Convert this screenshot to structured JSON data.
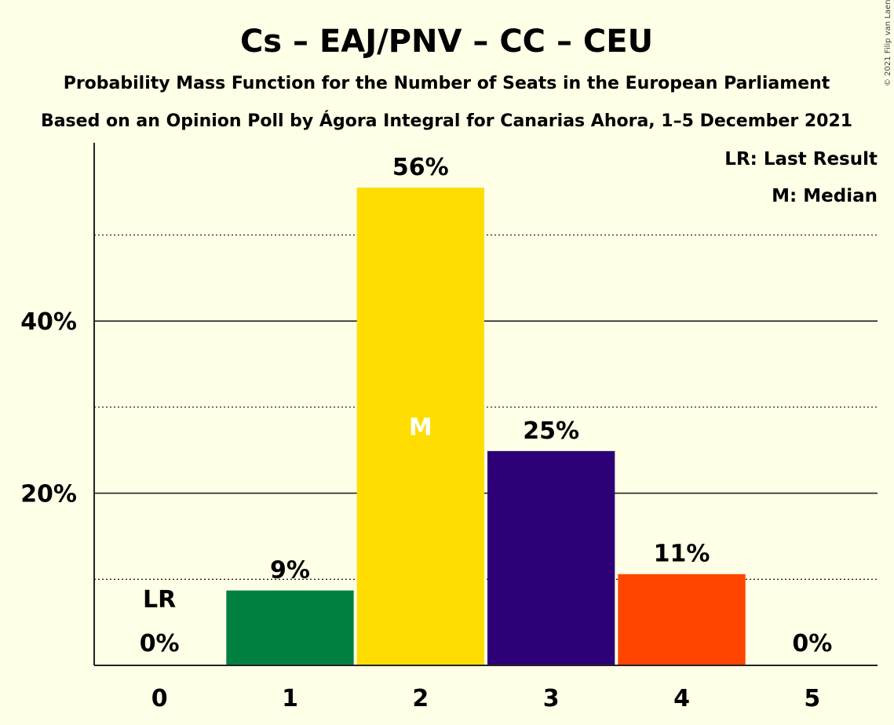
{
  "chart_data": {
    "type": "bar",
    "title": "Cs – EAJ/PNV – CC – CEU",
    "subtitle": "Probability Mass Function for the Number of Seats in the European Parliament",
    "subtitle2": "Based on an Opinion Poll by Ágora Integral for Canarias Ahora, 1–5 December 2021",
    "copyright": "© 2021 Filip van Laenen",
    "legend": [
      "LR: Last Result",
      "M: Median"
    ],
    "legend_position": "top-right",
    "categories": [
      "0",
      "1",
      "2",
      "3",
      "4",
      "5"
    ],
    "values": [
      0,
      8.7,
      55.5,
      24.9,
      10.6,
      0
    ],
    "value_labels": [
      "0%",
      "9%",
      "56%",
      "25%",
      "11%",
      "0%"
    ],
    "colors": [
      "#008040",
      "#008040",
      "#FFDD00",
      "#2E0078",
      "#FF4500",
      "#FF4500"
    ],
    "last_result_index": 0,
    "last_result_label": "LR",
    "median_index": 2,
    "median_label": "M",
    "ylim": [
      0,
      60
    ],
    "y_major_ticks": [
      20,
      40
    ],
    "y_tick_labels": [
      "20%",
      "40%"
    ],
    "y_minor_gridlines": [
      10,
      30,
      50
    ],
    "grid": true
  }
}
